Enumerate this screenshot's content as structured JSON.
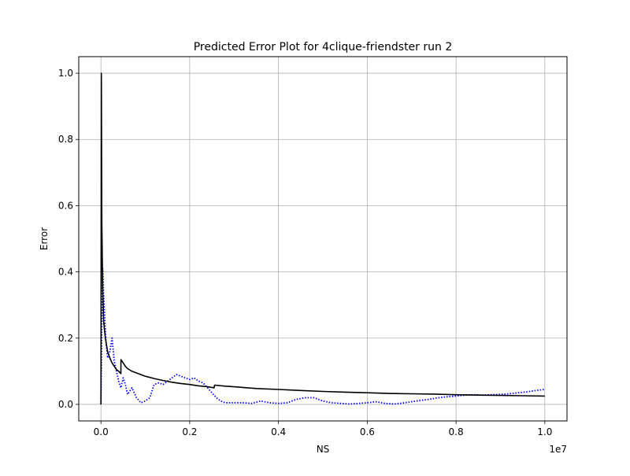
{
  "chart_data": {
    "type": "line",
    "title": "Predicted Error Plot for 4clique-friendster run 2",
    "xlabel": "NS",
    "ylabel": "Error",
    "x_offset_label": "1e7",
    "xlim": [
      -0.05,
      1.05
    ],
    "ylim": [
      -0.05,
      1.05
    ],
    "x_scale_factor": 10000000,
    "xticks": [
      0.0,
      0.2,
      0.4,
      0.6,
      0.8,
      1.0
    ],
    "yticks": [
      0.0,
      0.2,
      0.4,
      0.6,
      0.8,
      1.0
    ],
    "xtick_labels": [
      "0.0",
      "0.2",
      "0.4",
      "0.6",
      "0.8",
      "1.0"
    ],
    "ytick_labels": [
      "0.0",
      "0.2",
      "0.4",
      "0.6",
      "0.8",
      "1.0"
    ],
    "grid": true,
    "legend": "none",
    "colors": {
      "actual": "#0000ff",
      "predicted": "#000000"
    },
    "series": [
      {
        "style": "dotted",
        "color": "#0000ff",
        "x": [
          0.0,
          0.001,
          0.002,
          0.003,
          0.004,
          0.005,
          0.006,
          0.008,
          0.01,
          0.012,
          0.015,
          0.02,
          0.025,
          0.03,
          0.035,
          0.04,
          0.045,
          0.05,
          0.055,
          0.06,
          0.07,
          0.08,
          0.09,
          0.1,
          0.11,
          0.12,
          0.13,
          0.14,
          0.15,
          0.16,
          0.17,
          0.18,
          0.19,
          0.2,
          0.21,
          0.22,
          0.23,
          0.24,
          0.25,
          0.26,
          0.27,
          0.28,
          0.3,
          0.32,
          0.34,
          0.36,
          0.38,
          0.4,
          0.42,
          0.44,
          0.46,
          0.48,
          0.5,
          0.52,
          0.54,
          0.56,
          0.58,
          0.6,
          0.62,
          0.64,
          0.66,
          0.68,
          0.7,
          0.72,
          0.74,
          0.76,
          0.78,
          0.8,
          0.82,
          0.84,
          0.86,
          0.88,
          0.9,
          0.92,
          0.94,
          0.96,
          0.98,
          1.0
        ],
        "y": [
          0.0,
          0.1,
          0.25,
          0.35,
          0.41,
          0.38,
          0.33,
          0.28,
          0.22,
          0.18,
          0.14,
          0.16,
          0.2,
          0.13,
          0.1,
          0.07,
          0.05,
          0.08,
          0.06,
          0.03,
          0.05,
          0.02,
          0.005,
          0.01,
          0.02,
          0.06,
          0.065,
          0.06,
          0.07,
          0.08,
          0.09,
          0.085,
          0.08,
          0.075,
          0.08,
          0.07,
          0.065,
          0.05,
          0.035,
          0.02,
          0.01,
          0.005,
          0.005,
          0.005,
          0.003,
          0.01,
          0.005,
          0.003,
          0.005,
          0.015,
          0.02,
          0.02,
          0.01,
          0.005,
          0.003,
          0.001,
          0.003,
          0.005,
          0.008,
          0.003,
          0.001,
          0.004,
          0.008,
          0.012,
          0.015,
          0.02,
          0.023,
          0.025,
          0.028,
          0.029,
          0.028,
          0.029,
          0.03,
          0.032,
          0.035,
          0.038,
          0.042,
          0.045
        ]
      },
      {
        "style": "solid",
        "color": "#000000",
        "x": [
          0.0,
          0.001,
          0.002,
          0.004,
          0.006,
          0.01,
          0.015,
          0.02,
          0.025,
          0.03,
          0.035,
          0.04,
          0.045,
          0.0451,
          0.05,
          0.055,
          0.06,
          0.07,
          0.08,
          0.09,
          0.1,
          0.12,
          0.14,
          0.16,
          0.18,
          0.2,
          0.22,
          0.24,
          0.255,
          0.256,
          0.28,
          0.3,
          0.35,
          0.4,
          0.45,
          0.5,
          0.55,
          0.6,
          0.65,
          0.7,
          0.75,
          0.8,
          0.85,
          0.9,
          0.95,
          1.0
        ],
        "y": [
          0.0,
          1.0,
          0.55,
          0.35,
          0.25,
          0.2,
          0.16,
          0.14,
          0.125,
          0.115,
          0.105,
          0.1,
          0.093,
          0.135,
          0.125,
          0.115,
          0.108,
          0.1,
          0.095,
          0.09,
          0.085,
          0.078,
          0.072,
          0.067,
          0.063,
          0.06,
          0.056,
          0.053,
          0.05,
          0.058,
          0.055,
          0.053,
          0.048,
          0.045,
          0.042,
          0.039,
          0.037,
          0.035,
          0.033,
          0.032,
          0.031,
          0.029,
          0.028,
          0.027,
          0.026,
          0.025
        ]
      }
    ]
  }
}
